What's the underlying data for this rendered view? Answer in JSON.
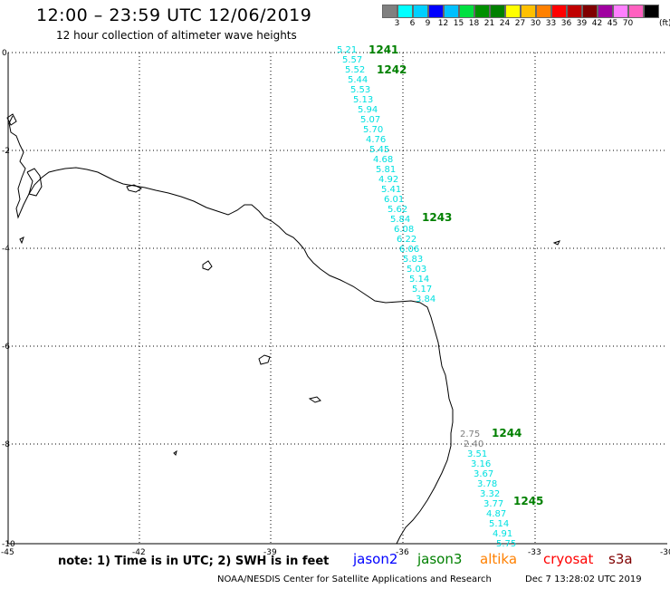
{
  "header": {
    "title": "12:00 – 23:59 UTC 12/06/2019",
    "subtitle": "12 hour collection of altimeter wave heights"
  },
  "legend": {
    "labels": [
      "3",
      "6",
      "9",
      "12",
      "15",
      "18",
      "21",
      "24",
      "27",
      "30",
      "33",
      "36",
      "39",
      "42",
      "45",
      "70"
    ],
    "unit": "(ft)",
    "colors": [
      "#808080",
      "#00ffff",
      "#00d0ff",
      "#0000ff",
      "#00c0ff",
      "#00e040",
      "#009000",
      "#008000",
      "#ffff00",
      "#ffc000",
      "#ff8000",
      "#ff0000",
      "#c00000",
      "#800000",
      "#a000a0",
      "#ff80ff",
      "#ff60c0",
      "#000000"
    ]
  },
  "map": {
    "lon_ticks": [
      "-45",
      "-42",
      "-39",
      "-36",
      "-33",
      "-30"
    ],
    "lat_ticks": [
      "0",
      "-2",
      "-4",
      "-6",
      "-8",
      "-10"
    ],
    "swh_values": [
      {
        "text": "5.21",
        "color": "#00e0e0"
      },
      {
        "text": "5.57",
        "color": "#00e0e0"
      },
      {
        "text": "5.52",
        "color": "#00e0e0"
      },
      {
        "text": "5.44",
        "color": "#00e0e0"
      },
      {
        "text": "5.53",
        "color": "#00e0e0"
      },
      {
        "text": "5.13",
        "color": "#00e0e0"
      },
      {
        "text": "5.94",
        "color": "#00e0e0"
      },
      {
        "text": "5.07",
        "color": "#00e0e0"
      },
      {
        "text": "5.70",
        "color": "#00e0e0"
      },
      {
        "text": "4.76",
        "color": "#00e0e0"
      },
      {
        "text": "5.45",
        "color": "#00e0e0"
      },
      {
        "text": "4.68",
        "color": "#00e0e0"
      },
      {
        "text": "5.81",
        "color": "#00e0e0"
      },
      {
        "text": "4.92",
        "color": "#00e0e0"
      },
      {
        "text": "5.41",
        "color": "#00e0e0"
      },
      {
        "text": "6.01",
        "color": "#00e0e0"
      },
      {
        "text": "5.62",
        "color": "#00e0e0"
      },
      {
        "text": "5.84",
        "color": "#00e0e0"
      },
      {
        "text": "6.08",
        "color": "#00e0e0"
      },
      {
        "text": "6.22",
        "color": "#00e0e0"
      },
      {
        "text": "6.06",
        "color": "#00e0e0"
      },
      {
        "text": "5.83",
        "color": "#00e0e0"
      },
      {
        "text": "5.03",
        "color": "#00e0e0"
      },
      {
        "text": "5.14",
        "color": "#00e0e0"
      },
      {
        "text": "5.17",
        "color": "#00e0e0"
      },
      {
        "text": "3.84",
        "color": "#00e0e0"
      },
      {
        "text": "2.75",
        "color": "#808080"
      },
      {
        "text": "2.40",
        "color": "#808080"
      },
      {
        "text": "3.51",
        "color": "#00e0e0"
      },
      {
        "text": "3.16",
        "color": "#00e0e0"
      },
      {
        "text": "3.67",
        "color": "#00e0e0"
      },
      {
        "text": "3.78",
        "color": "#00e0e0"
      },
      {
        "text": "3.32",
        "color": "#00e0e0"
      },
      {
        "text": "3.77",
        "color": "#00e0e0"
      },
      {
        "text": "4.87",
        "color": "#00e0e0"
      },
      {
        "text": "5.14",
        "color": "#00e0e0"
      },
      {
        "text": "4.91",
        "color": "#00e0e0"
      },
      {
        "text": "5.75",
        "color": "#00e0e0"
      }
    ],
    "time_labels": [
      {
        "text": "1241",
        "color": "#008000"
      },
      {
        "text": "1242",
        "color": "#008000"
      },
      {
        "text": "1243",
        "color": "#008000"
      },
      {
        "text": "1244",
        "color": "#008000"
      },
      {
        "text": "1245",
        "color": "#008000"
      }
    ]
  },
  "footer": {
    "note": "note: 1) Time is in UTC; 2) SWH is in feet",
    "satellites": [
      {
        "name": "jason2",
        "color": "#0000ff"
      },
      {
        "name": "jason3",
        "color": "#008000"
      },
      {
        "name": "altika",
        "color": "#ff8000"
      },
      {
        "name": "cryosat",
        "color": "#ff0000"
      },
      {
        "name": "s3a",
        "color": "#800000"
      }
    ],
    "credit": "NOAA/NESDIS Center for Satellite Applications and Research",
    "timestamp": "Dec  7 13:28:02 UTC 2019"
  }
}
